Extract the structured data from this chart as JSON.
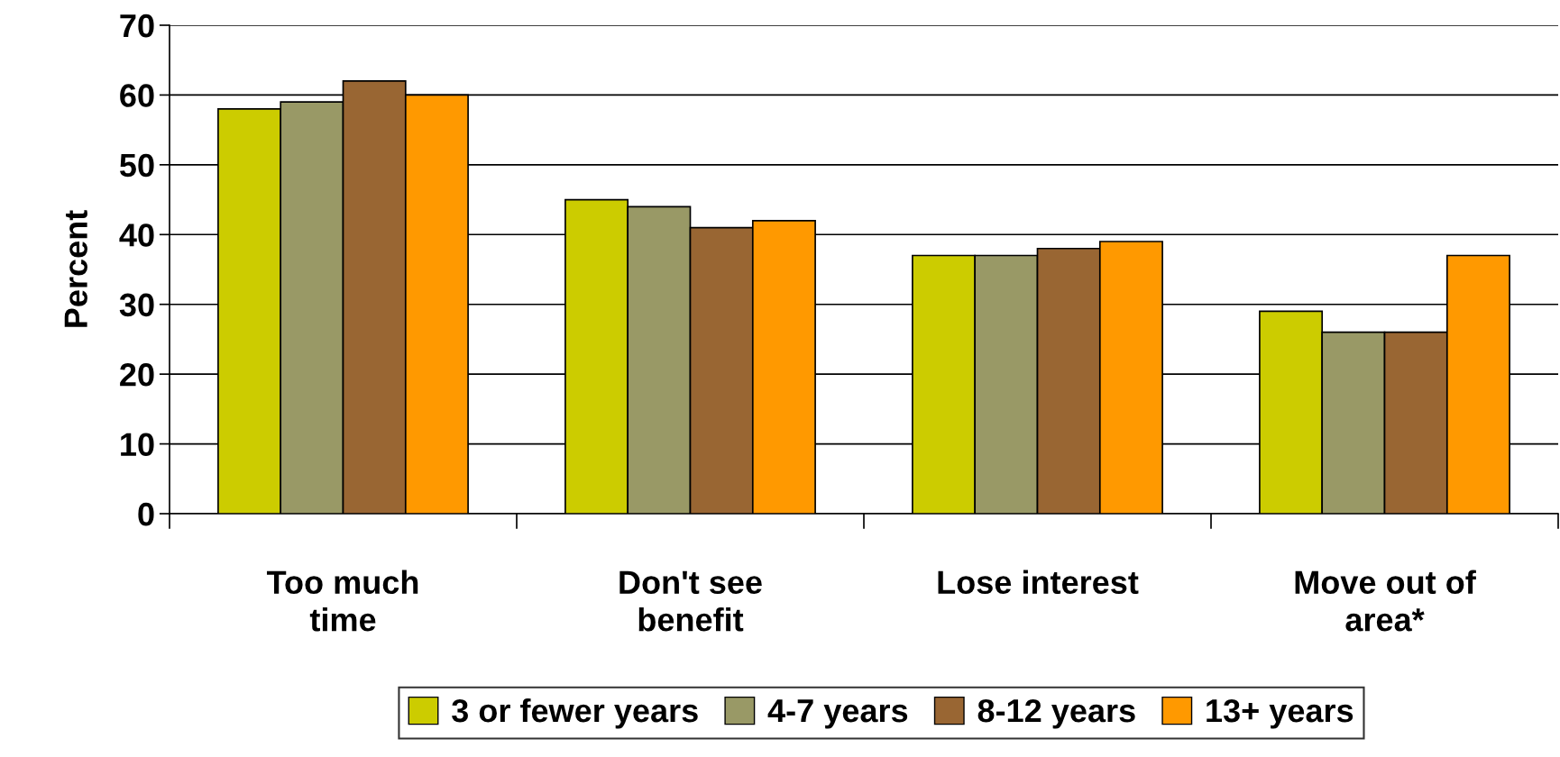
{
  "chart_data": {
    "type": "bar",
    "ylabel": "Percent",
    "categories": [
      "Too much\ntime",
      "Don't see\nbenefit",
      "Lose interest",
      "Move out of\narea*"
    ],
    "series": [
      {
        "name": "3 or fewer years",
        "color": "#cccc00",
        "values": [
          58,
          45,
          37,
          29
        ]
      },
      {
        "name": "4-7 years",
        "color": "#999966",
        "values": [
          59,
          44,
          37,
          26
        ]
      },
      {
        "name": "8-12 years",
        "color": "#996633",
        "values": [
          62,
          41,
          38,
          26
        ]
      },
      {
        "name": "13+ years",
        "color": "#ff9900",
        "values": [
          60,
          42,
          39,
          37
        ]
      }
    ],
    "ylim": [
      0,
      70
    ],
    "yticks": [
      0,
      10,
      20,
      30,
      40,
      50,
      60,
      70
    ],
    "grid": "y",
    "legend": "bottom"
  }
}
